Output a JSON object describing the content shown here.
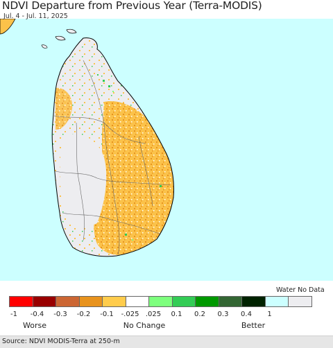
{
  "title": "NDVI Departure from Previous Year (Terra-MODIS)",
  "subtitle": "Jul. 4 - Jul. 11, 2025",
  "legend": {
    "water_no_data_label": "Water No Data",
    "swatch_colors": [
      "#ff0000",
      "#990000",
      "#cc6633",
      "#e8931e",
      "#ffcc4c",
      "#ffffff",
      "#7dff7d",
      "#33cc55",
      "#009900",
      "#336633",
      "#002200",
      "#ccffff",
      "#ededf0"
    ],
    "ticks": [
      "-1",
      "-0.4",
      "-0.3",
      "-0.2",
      "-0.1",
      "-.025",
      ".025",
      "0.1",
      "0.2",
      "0.3",
      "0.4",
      "1"
    ],
    "categories": [
      "Worse",
      "No Change",
      "Better"
    ]
  },
  "map_colors": {
    "water": "#ccffff",
    "no_data_land": "#ededf0",
    "boundary": "#000000",
    "decline": "#fbc24a",
    "decline_strong": "#e8931e",
    "improve": "#33cc55"
  },
  "source": "Source: NDVI MODIS-Terra at 250-m"
}
